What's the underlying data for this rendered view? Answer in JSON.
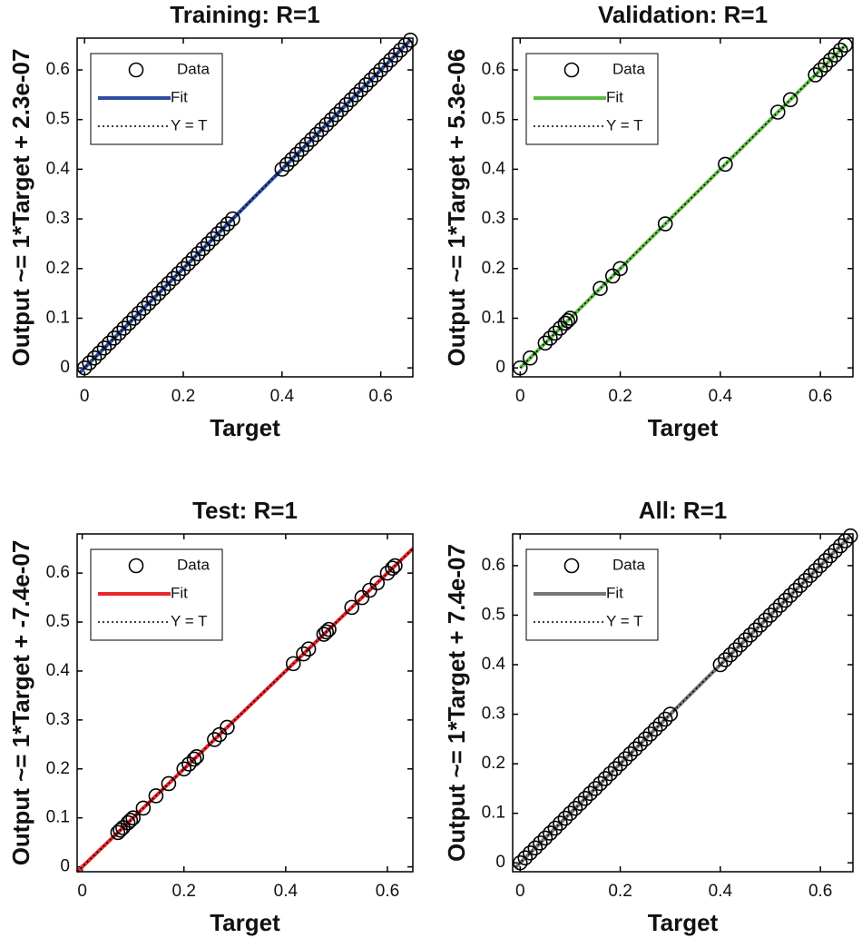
{
  "chart_data": [
    {
      "type": "scatter",
      "title": "Training: R=1",
      "xlabel": "Target",
      "ylabel": "Output ~= 1*Target + 2.3e-07",
      "legend": "upper left",
      "xlim": [
        -0.015,
        0.665
      ],
      "ylim": [
        -0.018,
        0.664
      ],
      "xticks": [
        0,
        0.2,
        0.4,
        0.6
      ],
      "yticks": [
        0,
        0.1,
        0.2,
        0.3,
        0.4,
        0.5,
        0.6
      ],
      "series": [
        {
          "name": "Data",
          "color": "#000000",
          "x": [
            0,
            0.01,
            0.02,
            0.03,
            0.04,
            0.05,
            0.06,
            0.07,
            0.08,
            0.09,
            0.1,
            0.11,
            0.12,
            0.13,
            0.14,
            0.15,
            0.16,
            0.17,
            0.18,
            0.19,
            0.2,
            0.21,
            0.22,
            0.23,
            0.24,
            0.25,
            0.26,
            0.27,
            0.28,
            0.29,
            0.3,
            0.4,
            0.41,
            0.42,
            0.43,
            0.44,
            0.45,
            0.46,
            0.47,
            0.48,
            0.49,
            0.5,
            0.51,
            0.52,
            0.53,
            0.54,
            0.55,
            0.56,
            0.57,
            0.58,
            0.59,
            0.6,
            0.61,
            0.62,
            0.63,
            0.64,
            0.65,
            0.66
          ],
          "values": [
            0,
            0.01,
            0.02,
            0.03,
            0.04,
            0.05,
            0.06,
            0.07,
            0.08,
            0.09,
            0.1,
            0.11,
            0.12,
            0.13,
            0.14,
            0.15,
            0.16,
            0.17,
            0.18,
            0.19,
            0.2,
            0.21,
            0.22,
            0.23,
            0.24,
            0.25,
            0.26,
            0.27,
            0.28,
            0.29,
            0.3,
            0.4,
            0.41,
            0.42,
            0.43,
            0.44,
            0.45,
            0.46,
            0.47,
            0.48,
            0.49,
            0.5,
            0.51,
            0.52,
            0.53,
            0.54,
            0.55,
            0.56,
            0.57,
            0.58,
            0.59,
            0.6,
            0.61,
            0.62,
            0.63,
            0.64,
            0.65,
            0.66
          ]
        },
        {
          "name": "Fit",
          "color": "#2f4ea3",
          "x": [
            -0.01,
            0.66
          ],
          "values": [
            -0.01,
            0.66
          ]
        },
        {
          "name": "Y = T",
          "color": "#000000",
          "x": [
            -0.01,
            0.66
          ],
          "values": [
            -0.01,
            0.66
          ]
        }
      ]
    },
    {
      "type": "scatter",
      "title": "Validation: R=1",
      "xlabel": "Target",
      "ylabel": "Output ~= 1*Target + 5.3e-06",
      "legend": "upper left",
      "xlim": [
        -0.015,
        0.665
      ],
      "ylim": [
        -0.018,
        0.664
      ],
      "xticks": [
        0,
        0.2,
        0.4,
        0.6
      ],
      "yticks": [
        0,
        0.1,
        0.2,
        0.3,
        0.4,
        0.5,
        0.6
      ],
      "series": [
        {
          "name": "Data",
          "color": "#000000",
          "x": [
            0,
            0.02,
            0.05,
            0.06,
            0.07,
            0.08,
            0.09,
            0.095,
            0.1,
            0.16,
            0.185,
            0.2,
            0.29,
            0.41,
            0.515,
            0.54,
            0.59,
            0.6,
            0.61,
            0.62,
            0.63,
            0.64,
            0.65
          ],
          "values": [
            0,
            0.02,
            0.05,
            0.06,
            0.07,
            0.08,
            0.09,
            0.095,
            0.1,
            0.16,
            0.185,
            0.2,
            0.29,
            0.41,
            0.515,
            0.54,
            0.59,
            0.6,
            0.61,
            0.62,
            0.63,
            0.64,
            0.65
          ]
        },
        {
          "name": "Fit",
          "color": "#5dbb46",
          "x": [
            0,
            0.65
          ],
          "values": [
            0,
            0.65
          ]
        },
        {
          "name": "Y = T",
          "color": "#000000",
          "x": [
            0,
            0.65
          ],
          "values": [
            0,
            0.65
          ]
        }
      ]
    },
    {
      "type": "scatter",
      "title": "Test: R=1",
      "xlabel": "Target",
      "ylabel": "Output ~= 1*Target + -7.4e-07",
      "legend": "upper left",
      "xlim": [
        -0.01,
        0.65
      ],
      "ylim": [
        -0.01,
        0.68
      ],
      "xticks": [
        0,
        0.2,
        0.4,
        0.6
      ],
      "yticks": [
        0,
        0.1,
        0.2,
        0.3,
        0.4,
        0.5,
        0.6
      ],
      "series": [
        {
          "name": "Data",
          "color": "#000000",
          "x": [
            0.07,
            0.075,
            0.08,
            0.09,
            0.095,
            0.1,
            0.12,
            0.145,
            0.17,
            0.2,
            0.21,
            0.22,
            0.225,
            0.26,
            0.27,
            0.285,
            0.415,
            0.435,
            0.445,
            0.475,
            0.48,
            0.485,
            0.53,
            0.55,
            0.565,
            0.58,
            0.6,
            0.61,
            0.615
          ],
          "values": [
            0.07,
            0.075,
            0.08,
            0.09,
            0.095,
            0.1,
            0.12,
            0.145,
            0.17,
            0.2,
            0.21,
            0.22,
            0.225,
            0.26,
            0.27,
            0.285,
            0.415,
            0.435,
            0.445,
            0.475,
            0.48,
            0.485,
            0.53,
            0.55,
            0.565,
            0.58,
            0.6,
            0.61,
            0.615
          ]
        },
        {
          "name": "Fit",
          "color": "#e8262b",
          "x": [
            -0.01,
            0.65
          ],
          "values": [
            -0.01,
            0.65
          ]
        },
        {
          "name": "Y = T",
          "color": "#000000",
          "x": [
            -0.01,
            0.65
          ],
          "values": [
            -0.01,
            0.65
          ]
        }
      ]
    },
    {
      "type": "scatter",
      "title": "All: R=1",
      "xlabel": "Target",
      "ylabel": "Output ~= 1*Target + 7.4e-07",
      "legend": "upper left",
      "xlim": [
        -0.015,
        0.665
      ],
      "ylim": [
        -0.018,
        0.664
      ],
      "xticks": [
        0,
        0.2,
        0.4,
        0.6
      ],
      "yticks": [
        0,
        0.1,
        0.2,
        0.3,
        0.4,
        0.5,
        0.6
      ],
      "series": [
        {
          "name": "Data",
          "color": "#000000",
          "x": [
            0,
            0.01,
            0.02,
            0.03,
            0.04,
            0.05,
            0.06,
            0.07,
            0.08,
            0.09,
            0.1,
            0.11,
            0.12,
            0.13,
            0.14,
            0.15,
            0.16,
            0.17,
            0.18,
            0.19,
            0.2,
            0.21,
            0.22,
            0.23,
            0.24,
            0.25,
            0.26,
            0.27,
            0.28,
            0.29,
            0.3,
            0.4,
            0.41,
            0.42,
            0.43,
            0.44,
            0.45,
            0.46,
            0.47,
            0.48,
            0.49,
            0.5,
            0.51,
            0.52,
            0.53,
            0.54,
            0.55,
            0.56,
            0.57,
            0.58,
            0.59,
            0.6,
            0.61,
            0.62,
            0.63,
            0.64,
            0.65,
            0.66
          ],
          "values": [
            0,
            0.01,
            0.02,
            0.03,
            0.04,
            0.05,
            0.06,
            0.07,
            0.08,
            0.09,
            0.1,
            0.11,
            0.12,
            0.13,
            0.14,
            0.15,
            0.16,
            0.17,
            0.18,
            0.19,
            0.2,
            0.21,
            0.22,
            0.23,
            0.24,
            0.25,
            0.26,
            0.27,
            0.28,
            0.29,
            0.3,
            0.4,
            0.41,
            0.42,
            0.43,
            0.44,
            0.45,
            0.46,
            0.47,
            0.48,
            0.49,
            0.5,
            0.51,
            0.52,
            0.53,
            0.54,
            0.55,
            0.56,
            0.57,
            0.58,
            0.59,
            0.6,
            0.61,
            0.62,
            0.63,
            0.64,
            0.65,
            0.66
          ]
        },
        {
          "name": "Fit",
          "color": "#777777",
          "x": [
            -0.01,
            0.66
          ],
          "values": [
            -0.01,
            0.66
          ]
        },
        {
          "name": "Y = T",
          "color": "#000000",
          "x": [
            -0.01,
            0.66
          ],
          "values": [
            -0.01,
            0.66
          ]
        }
      ]
    }
  ]
}
